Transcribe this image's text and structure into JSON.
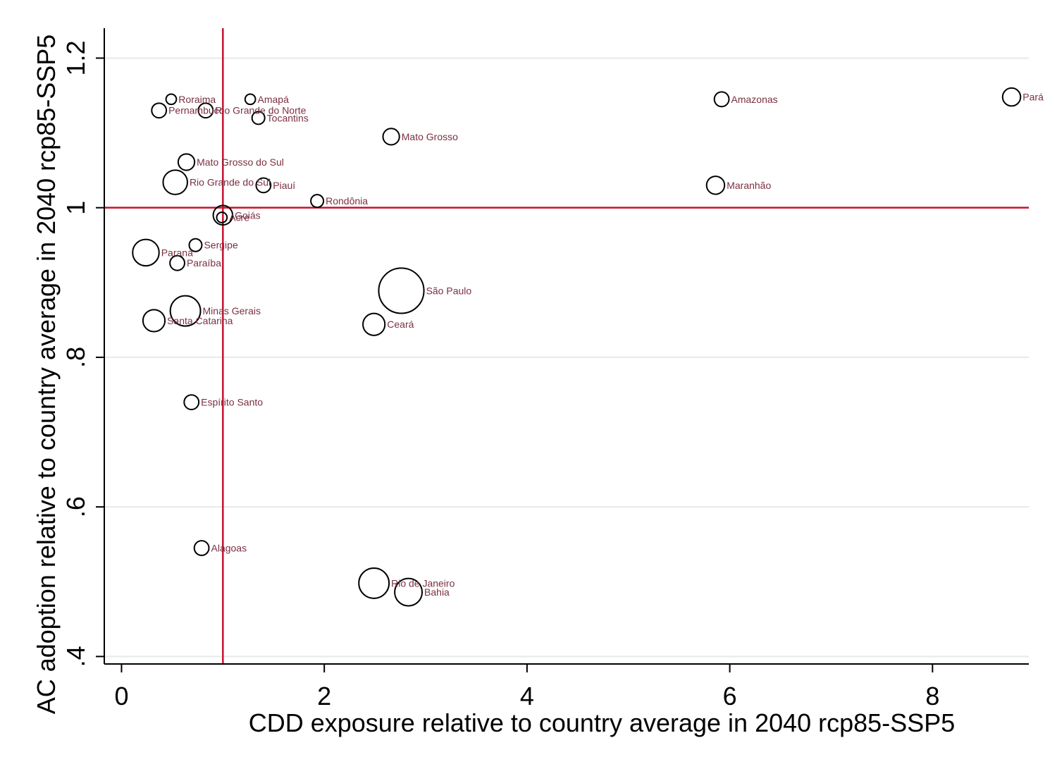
{
  "chart_data": {
    "type": "scatter",
    "title": "",
    "xlabel": "CDD exposure relative to country average in 2040 rcp85-SSP5",
    "ylabel": "AC adoption relative to country average in 2040 rcp85-SSP5",
    "xlim": [
      -0.17,
      8.95
    ],
    "ylim": [
      0.39,
      1.24
    ],
    "xticks": [
      0,
      2,
      4,
      6,
      8
    ],
    "xtick_labels": [
      "0",
      "2",
      "4",
      "6",
      "8"
    ],
    "yticks": [
      0.4,
      0.6,
      0.8,
      1,
      1.2
    ],
    "ytick_labels": [
      ".4",
      ".6",
      ".8",
      "1",
      "1.2"
    ],
    "grid": "horizontal",
    "reference_lines": {
      "x": 1,
      "y": 1,
      "color": "#c8102e"
    },
    "marker": "hollow circle sized by weight",
    "label_color": "#7b3041",
    "points": [
      {
        "label": "Roraima",
        "x": 0.49,
        "y": 1.145,
        "size": 2
      },
      {
        "label": "Amapá",
        "x": 1.27,
        "y": 1.145,
        "size": 2
      },
      {
        "label": "Pernambuco",
        "x": 0.37,
        "y": 1.13,
        "size": 4
      },
      {
        "label": "Rio Grande do Norte",
        "x": 0.83,
        "y": 1.13,
        "size": 4
      },
      {
        "label": "Tocantins",
        "x": 1.35,
        "y": 1.12,
        "size": 3
      },
      {
        "label": "Amazonas",
        "x": 5.92,
        "y": 1.145,
        "size": 4
      },
      {
        "label": "Pará",
        "x": 8.78,
        "y": 1.148,
        "size": 6
      },
      {
        "label": "Mato Grosso",
        "x": 2.66,
        "y": 1.095,
        "size": 5
      },
      {
        "label": "Mato Grosso do Sul",
        "x": 0.64,
        "y": 1.061,
        "size": 5
      },
      {
        "label": "Rio Grande do Sul",
        "x": 0.53,
        "y": 1.034,
        "size": 11
      },
      {
        "label": "Piauí",
        "x": 1.4,
        "y": 1.03,
        "size": 4
      },
      {
        "label": "Maranhão",
        "x": 5.86,
        "y": 1.03,
        "size": 6
      },
      {
        "label": "Rondônia",
        "x": 1.93,
        "y": 1.009,
        "size": 3
      },
      {
        "label": "Goiás",
        "x": 1.0,
        "y": 0.99,
        "size": 7
      },
      {
        "label": "Acre",
        "x": 0.99,
        "y": 0.987,
        "size": 2
      },
      {
        "label": "Sergipe",
        "x": 0.73,
        "y": 0.95,
        "size": 3
      },
      {
        "label": "Paraná",
        "x": 0.24,
        "y": 0.94,
        "size": 13
      },
      {
        "label": "Paraíba",
        "x": 0.55,
        "y": 0.926,
        "size": 4
      },
      {
        "label": "São Paulo",
        "x": 2.76,
        "y": 0.889,
        "size": 38
      },
      {
        "label": "Minas Gerais",
        "x": 0.63,
        "y": 0.862,
        "size": 17
      },
      {
        "label": "Santa Catarina",
        "x": 0.32,
        "y": 0.849,
        "size": 9
      },
      {
        "label": "Ceará",
        "x": 2.49,
        "y": 0.844,
        "size": 9
      },
      {
        "label": "Espírito Santo",
        "x": 0.69,
        "y": 0.74,
        "size": 4
      },
      {
        "label": "Alagoas",
        "x": 0.79,
        "y": 0.545,
        "size": 4
      },
      {
        "label": "Rio de Janeiro",
        "x": 2.49,
        "y": 0.498,
        "size": 17
      },
      {
        "label": "Bahia",
        "x": 2.83,
        "y": 0.486,
        "size": 14
      }
    ]
  }
}
